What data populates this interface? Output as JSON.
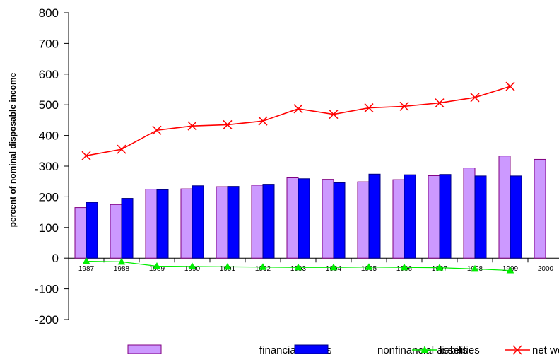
{
  "chart_data": {
    "type": "bar",
    "title": "",
    "xlabel": "",
    "ylabel": "percent of nominal disposable income",
    "ylim": [
      -200,
      800
    ],
    "yticks": [
      800,
      700,
      600,
      500,
      400,
      300,
      200,
      100,
      0,
      -100,
      -200
    ],
    "categories": [
      "1987",
      "1988",
      "1989",
      "1990",
      "1991",
      "1992",
      "1993",
      "1994",
      "1995",
      "1996",
      "1997",
      "1998",
      "1999",
      "2000"
    ],
    "grid": false,
    "legend_position": "bottom",
    "series": [
      {
        "name": "financial assets",
        "kind": "bar",
        "color": "#cc99ff",
        "edge_color": "#800080",
        "values": [
          165,
          175,
          225,
          226,
          233,
          238,
          262,
          257,
          249,
          256,
          269,
          294,
          333,
          322
        ]
      },
      {
        "name": "nonfinancial assets",
        "kind": "bar",
        "color": "#0000ff",
        "edge_color": "#000080",
        "values": [
          182,
          195,
          223,
          236,
          234,
          241,
          259,
          246,
          274,
          272,
          273,
          268,
          268,
          null
        ]
      },
      {
        "name": "liabilities",
        "kind": "line",
        "marker": "triangle",
        "color": "#00ee00",
        "values": [
          -10,
          -12,
          -26,
          -27,
          -28,
          -29,
          -30,
          -30,
          -29,
          -30,
          -31,
          -35,
          -40,
          null
        ]
      },
      {
        "name": "net wealth",
        "kind": "line",
        "marker": "x",
        "color": "#ff0000",
        "values": [
          334,
          355,
          417,
          431,
          435,
          447,
          487,
          469,
          490,
          495,
          506,
          524,
          560,
          null
        ]
      }
    ]
  }
}
